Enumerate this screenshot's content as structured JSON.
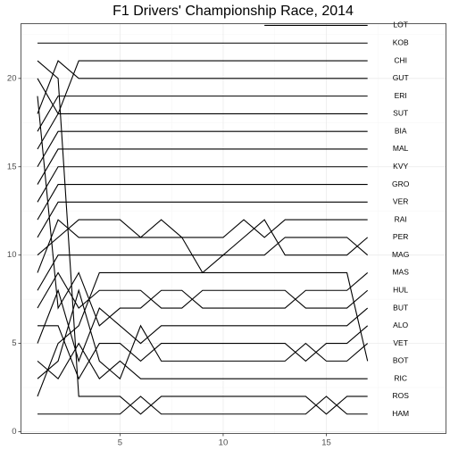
{
  "chart_data": {
    "type": "line",
    "title": "F1 Drivers' Championship Race, 2014",
    "xlabel": "",
    "ylabel": "",
    "xlim": [
      0.2,
      20.8
    ],
    "ylim": [
      -0.1,
      23.1
    ],
    "x_ticks": [
      5,
      10,
      15
    ],
    "y_ticks": [
      0,
      5,
      10,
      15,
      20
    ],
    "grid": true,
    "legend": "none",
    "races": [
      1,
      2,
      3,
      4,
      5,
      6,
      7,
      8,
      9,
      10,
      11,
      12,
      13,
      14,
      15,
      16,
      17
    ],
    "series": [
      {
        "name": "HAM",
        "values": [
          1,
          1,
          1,
          1,
          1,
          2,
          1,
          1,
          1,
          1,
          1,
          1,
          1,
          1,
          2,
          1,
          1
        ]
      },
      {
        "name": "ROS",
        "values": [
          21,
          20,
          2,
          2,
          2,
          1,
          2,
          2,
          2,
          2,
          2,
          2,
          2,
          2,
          1,
          2,
          2
        ]
      },
      {
        "name": "RIC",
        "values": [
          4,
          3,
          5,
          3,
          4,
          3,
          3,
          3,
          3,
          3,
          3,
          3,
          3,
          3,
          3,
          3,
          3
        ]
      },
      {
        "name": "BOT",
        "values": [
          2,
          5,
          6,
          9,
          9,
          9,
          9,
          9,
          9,
          9,
          9,
          9,
          9,
          9,
          9,
          9,
          4
        ]
      },
      {
        "name": "VET",
        "values": [
          3,
          4,
          8,
          4,
          3,
          6,
          4,
          4,
          4,
          4,
          4,
          4,
          4,
          5,
          4,
          4,
          5
        ]
      },
      {
        "name": "ALO",
        "values": [
          6,
          6,
          3,
          5,
          5,
          4,
          5,
          5,
          5,
          5,
          5,
          5,
          5,
          4,
          5,
          5,
          6
        ]
      },
      {
        "name": "BUT",
        "values": [
          5,
          8,
          4,
          7,
          6,
          5,
          6,
          6,
          6,
          6,
          6,
          6,
          6,
          6,
          6,
          6,
          7
        ]
      },
      {
        "name": "MAS",
        "values": [
          19,
          7,
          9,
          6,
          7,
          7,
          8,
          8,
          7,
          7,
          7,
          7,
          7,
          8,
          8,
          8,
          9
        ]
      },
      {
        "name": "HUL",
        "values": [
          7,
          9,
          7,
          8,
          8,
          8,
          7,
          7,
          8,
          8,
          8,
          8,
          8,
          7,
          7,
          7,
          8
        ]
      },
      {
        "name": "MAG",
        "values": [
          8,
          10,
          10,
          10,
          10,
          10,
          10,
          10,
          10,
          10,
          10,
          10,
          11,
          11,
          11,
          11,
          10
        ]
      },
      {
        "name": "PER",
        "values": [
          9,
          12,
          11,
          11,
          11,
          11,
          11,
          11,
          9,
          10,
          11,
          12,
          10,
          10,
          10,
          10,
          11
        ]
      },
      {
        "name": "RAI",
        "values": [
          10,
          11,
          12,
          12,
          12,
          11,
          12,
          11,
          11,
          11,
          12,
          11,
          12,
          12,
          12,
          12,
          12
        ]
      },
      {
        "name": "VER",
        "values": [
          11,
          13,
          13,
          13,
          13,
          13,
          13,
          13,
          13,
          13,
          13,
          13,
          13,
          13,
          13,
          13,
          13
        ]
      },
      {
        "name": "GRO",
        "values": [
          12,
          14,
          14,
          14,
          14,
          14,
          14,
          14,
          14,
          14,
          14,
          14,
          14,
          14,
          14,
          14,
          14
        ]
      },
      {
        "name": "KVY",
        "values": [
          13,
          15,
          15,
          15,
          15,
          15,
          15,
          15,
          15,
          15,
          15,
          15,
          15,
          15,
          15,
          15,
          15
        ]
      },
      {
        "name": "MAL",
        "values": [
          14,
          16,
          16,
          16,
          16,
          16,
          16,
          16,
          16,
          16,
          16,
          16,
          16,
          16,
          16,
          16,
          16
        ]
      },
      {
        "name": "BIA",
        "values": [
          15,
          17,
          17,
          17,
          17,
          17,
          17,
          17,
          17,
          17,
          17,
          17,
          17,
          17,
          17,
          17,
          17
        ]
      },
      {
        "name": "SUT",
        "values": [
          16,
          18,
          18,
          18,
          18,
          18,
          18,
          18,
          18,
          18,
          18,
          18,
          18,
          18,
          18,
          18,
          18
        ]
      },
      {
        "name": "ERI",
        "values": [
          17,
          19,
          19,
          19,
          19,
          19,
          19,
          19,
          19,
          19,
          19,
          19,
          19,
          19,
          19,
          19,
          19
        ]
      },
      {
        "name": "GUT",
        "values": [
          18,
          21,
          20,
          20,
          20,
          20,
          20,
          20,
          20,
          20,
          20,
          20,
          20,
          20,
          20,
          20,
          20
        ]
      },
      {
        "name": "CHI",
        "values": [
          20,
          18,
          21,
          21,
          21,
          21,
          21,
          21,
          21,
          21,
          21,
          21,
          21,
          21,
          21,
          21,
          21
        ]
      },
      {
        "name": "KOB",
        "values": [
          22,
          22,
          22,
          22,
          22,
          22,
          22,
          22,
          22,
          22,
          22,
          22,
          22,
          22,
          22,
          22,
          22
        ]
      },
      {
        "name": "LOT",
        "values": [
          null,
          null,
          null,
          null,
          null,
          null,
          null,
          null,
          null,
          null,
          null,
          23,
          23,
          23,
          23,
          23,
          23
        ]
      }
    ]
  }
}
